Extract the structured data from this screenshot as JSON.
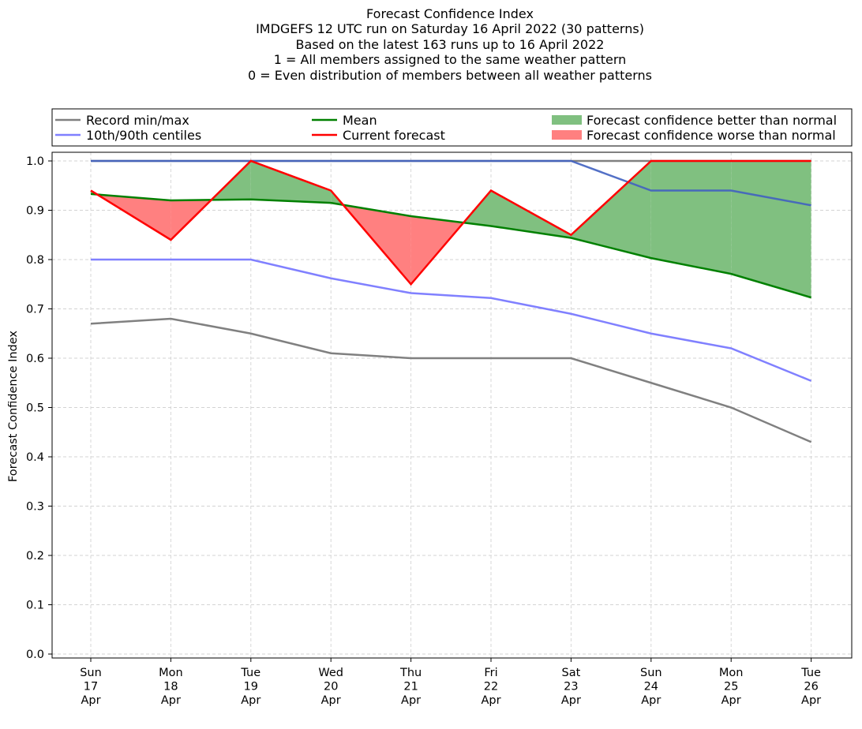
{
  "chart_data": {
    "type": "line",
    "title": [
      "Forecast Confidence Index",
      "IMDGEFS 12 UTC run on Saturday 16 April 2022 (30 patterns)",
      "Based on the latest 163 runs up to 16 April 2022",
      "1 = All members assigned to the same weather pattern",
      "0 = Even distribution of members between all weather patterns"
    ],
    "ylabel": "Forecast Confidence Index",
    "xlabel": "",
    "ylim": [
      0.0,
      1.0
    ],
    "yticks": [
      "0.0",
      "0.1",
      "0.2",
      "0.3",
      "0.4",
      "0.5",
      "0.6",
      "0.7",
      "0.8",
      "0.9",
      "1.0"
    ],
    "grid": true,
    "legend_placement": "top",
    "categories": [
      [
        "Sun",
        "17",
        "Apr"
      ],
      [
        "Mon",
        "18",
        "Apr"
      ],
      [
        "Tue",
        "19",
        "Apr"
      ],
      [
        "Wed",
        "20",
        "Apr"
      ],
      [
        "Thu",
        "21",
        "Apr"
      ],
      [
        "Fri",
        "22",
        "Apr"
      ],
      [
        "Sat",
        "23",
        "Apr"
      ],
      [
        "Sun",
        "24",
        "Apr"
      ],
      [
        "Mon",
        "25",
        "Apr"
      ],
      [
        "Tue",
        "26",
        "Apr"
      ]
    ],
    "series": {
      "record_min": [
        0.67,
        0.68,
        0.65,
        0.61,
        0.6,
        0.6,
        0.6,
        0.55,
        0.5,
        0.43
      ],
      "record_max": [
        1.0,
        1.0,
        1.0,
        1.0,
        1.0,
        1.0,
        1.0,
        1.0,
        1.0,
        1.0
      ],
      "centile_10": [
        0.8,
        0.8,
        0.8,
        0.762,
        0.732,
        0.722,
        0.69,
        0.65,
        0.62,
        0.554
      ],
      "centile_90": [
        1.0,
        1.0,
        1.0,
        1.0,
        1.0,
        1.0,
        1.0,
        0.94,
        0.94,
        0.91
      ],
      "mean": [
        0.933,
        0.92,
        0.922,
        0.915,
        0.888,
        0.868,
        0.844,
        0.803,
        0.771,
        0.723
      ],
      "current": [
        0.94,
        0.84,
        1.0,
        0.94,
        0.75,
        0.94,
        0.85,
        1.0,
        1.0,
        1.0
      ]
    },
    "legend": [
      {
        "label": "Record min/max",
        "kind": "line",
        "color": "#808080"
      },
      {
        "label": "10th/90th centiles",
        "kind": "line",
        "color": "#8080ff"
      },
      {
        "label": "Mean",
        "kind": "line",
        "color": "#008000"
      },
      {
        "label": "Current forecast",
        "kind": "line",
        "color": "#ff0000"
      },
      {
        "label": "Forecast confidence better than normal",
        "kind": "patch",
        "color": "#80c080"
      },
      {
        "label": "Forecast confidence worse than normal",
        "kind": "patch",
        "color": "#ff8080"
      }
    ],
    "colors": {
      "record": "#808080",
      "centile": "#8080ff",
      "mean": "#008000",
      "current": "#ff0000",
      "better": "#80c080",
      "worse": "#ff8080",
      "overlap": "#4060c0"
    }
  }
}
